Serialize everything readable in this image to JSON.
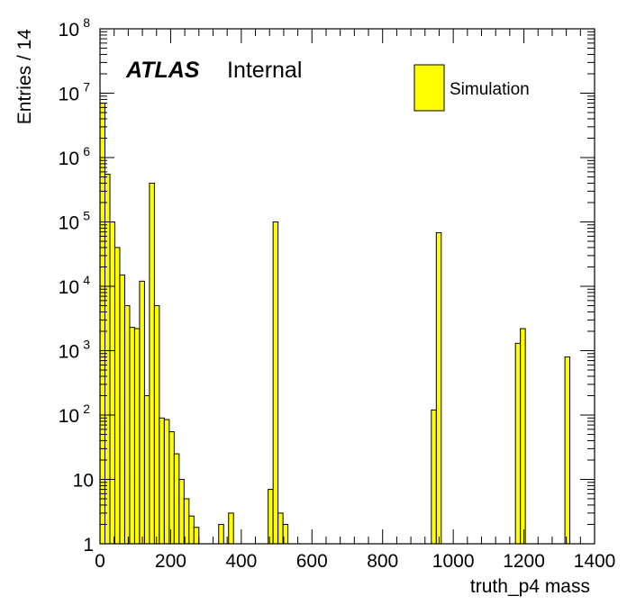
{
  "chart_data": {
    "type": "bar",
    "title": "",
    "xlabel": "truth_p4 mass",
    "ylabel": "Entries / 14",
    "xlim": [
      0,
      1400
    ],
    "ylim": [
      1,
      100000000
    ],
    "yscale": "log",
    "bin_width": 14,
    "fill_color": "#ffff00",
    "line_color": "#000000",
    "atlas_label": {
      "bold": "ATLAS",
      "text": "Internal"
    },
    "legend": {
      "entries": [
        "Simulation"
      ],
      "position": "top-right"
    },
    "x_ticks": [
      "0",
      "200",
      "400",
      "600",
      "800",
      "1000",
      "1200",
      "1400"
    ],
    "y_ticks": [
      {
        "value": 1,
        "base": "1",
        "exp": ""
      },
      {
        "value": 10,
        "base": "10",
        "exp": ""
      },
      {
        "value": 100,
        "base": "10",
        "exp": "2"
      },
      {
        "value": 1000,
        "base": "10",
        "exp": "3"
      },
      {
        "value": 10000,
        "base": "10",
        "exp": "4"
      },
      {
        "value": 100000,
        "base": "10",
        "exp": "5"
      },
      {
        "value": 1000000,
        "base": "10",
        "exp": "6"
      },
      {
        "value": 10000000,
        "base": "10",
        "exp": "7"
      },
      {
        "value": 100000000,
        "base": "10",
        "exp": "8"
      }
    ],
    "bins": [
      {
        "x": 0,
        "y": 7000000
      },
      {
        "x": 14,
        "y": 550000
      },
      {
        "x": 28,
        "y": 100000
      },
      {
        "x": 42,
        "y": 40000
      },
      {
        "x": 56,
        "y": 15000
      },
      {
        "x": 70,
        "y": 5000
      },
      {
        "x": 84,
        "y": 2300
      },
      {
        "x": 98,
        "y": 2200
      },
      {
        "x": 112,
        "y": 12000
      },
      {
        "x": 126,
        "y": 200
      },
      {
        "x": 140,
        "y": 400000
      },
      {
        "x": 154,
        "y": 5000
      },
      {
        "x": 168,
        "y": 90
      },
      {
        "x": 182,
        "y": 85
      },
      {
        "x": 196,
        "y": 55
      },
      {
        "x": 210,
        "y": 25
      },
      {
        "x": 224,
        "y": 10
      },
      {
        "x": 238,
        "y": 5
      },
      {
        "x": 252,
        "y": 2.7
      },
      {
        "x": 266,
        "y": 1.8
      },
      {
        "x": 336,
        "y": 2
      },
      {
        "x": 350,
        "y": 1
      },
      {
        "x": 364,
        "y": 3
      },
      {
        "x": 392,
        "y": 1
      },
      {
        "x": 476,
        "y": 7
      },
      {
        "x": 490,
        "y": 100000
      },
      {
        "x": 504,
        "y": 3
      },
      {
        "x": 518,
        "y": 2
      },
      {
        "x": 924,
        "y": 1
      },
      {
        "x": 938,
        "y": 120
      },
      {
        "x": 952,
        "y": 68000
      },
      {
        "x": 1176,
        "y": 1300
      },
      {
        "x": 1190,
        "y": 2200
      },
      {
        "x": 1316,
        "y": 800
      }
    ]
  }
}
